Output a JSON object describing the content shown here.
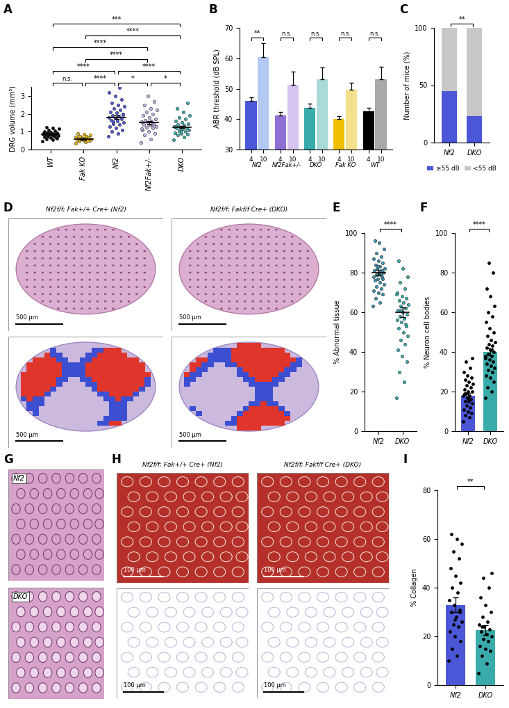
{
  "chart_data": [
    {
      "panel": "A",
      "type": "scatter",
      "categories": [
        "WT",
        "Fak KO",
        "Nf2",
        "Nf2Fak+/-",
        "DKO"
      ],
      "colors": [
        "#000000",
        "#e8b800",
        "#4b57d6",
        "#c4aee3",
        "#3aabab"
      ],
      "values": [
        [
          0.45,
          0.55,
          0.6,
          0.62,
          0.68,
          0.7,
          0.72,
          0.75,
          0.78,
          0.8,
          0.82,
          0.84,
          0.85,
          0.87,
          0.9,
          0.92,
          0.95,
          0.98,
          1.0,
          1.05,
          1.1,
          1.15,
          1.2,
          1.25,
          0.65,
          0.88,
          0.93
        ],
        [
          0.35,
          0.42,
          0.48,
          0.5,
          0.53,
          0.55,
          0.57,
          0.58,
          0.6,
          0.62,
          0.63,
          0.65,
          0.67,
          0.7,
          0.72,
          0.75,
          0.8,
          0.85,
          0.9,
          0.52,
          0.6
        ],
        [
          0.75,
          0.9,
          1.0,
          1.1,
          1.2,
          1.3,
          1.4,
          1.45,
          1.5,
          1.6,
          1.65,
          1.7,
          1.75,
          1.8,
          1.85,
          1.9,
          2.0,
          2.05,
          2.1,
          2.2,
          2.3,
          2.4,
          2.5,
          2.6,
          2.8,
          3.0,
          3.2,
          3.45,
          1.55,
          1.95
        ],
        [
          0.38,
          0.6,
          0.8,
          0.9,
          1.0,
          1.1,
          1.2,
          1.25,
          1.3,
          1.35,
          1.4,
          1.45,
          1.5,
          1.55,
          1.6,
          1.65,
          1.7,
          1.8,
          1.9,
          2.0,
          2.1,
          2.2,
          2.3,
          2.5,
          2.7,
          3.0,
          1.15,
          1.4
        ],
        [
          0.55,
          0.7,
          0.8,
          0.85,
          0.9,
          0.95,
          1.0,
          1.05,
          1.1,
          1.15,
          1.2,
          1.22,
          1.25,
          1.3,
          1.35,
          1.4,
          1.45,
          1.5,
          1.6,
          1.7,
          1.8,
          1.9,
          2.1,
          2.3,
          2.6,
          1.0,
          1.28
        ]
      ],
      "means": [
        0.85,
        0.6,
        1.8,
        1.5,
        1.25
      ],
      "errors": [
        0.05,
        0.04,
        0.1,
        0.09,
        0.06
      ],
      "ylabel": "DRG volume (mm³)",
      "ylim": [
        0,
        3.5
      ],
      "yticks": [
        0,
        1,
        2,
        3
      ],
      "comparisons": [
        {
          "groups": [
            "WT",
            "Fak KO"
          ],
          "label": "n.s."
        },
        {
          "groups": [
            "Fak KO",
            "Nf2"
          ],
          "label": "****"
        },
        {
          "groups": [
            "Nf2",
            "Nf2Fak+/-"
          ],
          "label": "*"
        },
        {
          "groups": [
            "Nf2Fak+/-",
            "DKO"
          ],
          "label": "*"
        },
        {
          "groups": [
            "WT",
            "Nf2"
          ],
          "label": "****"
        },
        {
          "groups": [
            "Nf2",
            "DKO"
          ],
          "label": "****"
        },
        {
          "groups": [
            "Fak KO",
            "Nf2Fak+/-"
          ],
          "label": "****"
        },
        {
          "groups": [
            "WT",
            "Nf2Fak+/-"
          ],
          "label": "****"
        },
        {
          "groups": [
            "Fak KO",
            "DKO"
          ],
          "label": "****"
        },
        {
          "groups": [
            "WT",
            "DKO"
          ],
          "label": "***"
        }
      ]
    },
    {
      "panel": "B",
      "type": "bar",
      "groups": [
        "Nf2",
        "Nf2Fak+/-",
        "DKO",
        "Fak KO",
        "WT"
      ],
      "series": [
        {
          "name": "4",
          "values": [
            46,
            41.3,
            43.8,
            40,
            42.6
          ],
          "errors": [
            1.2,
            1.0,
            1.2,
            1.0,
            1.2
          ],
          "colors": [
            "#4b57d6",
            "#8f6fd6",
            "#3aabab",
            "#f0c000",
            "#000000"
          ]
        },
        {
          "name": "10",
          "values": [
            60.5,
            51.3,
            53.2,
            49.7,
            53.2
          ],
          "errors": [
            4.5,
            4.3,
            3.7,
            2.2,
            4.0
          ],
          "colors": [
            "#b4c8f4",
            "#d5c4ee",
            "#a9d9d9",
            "#f5e08c",
            "#a8a8a8"
          ]
        }
      ],
      "ylabel": "ABR threshold (dB SPL)",
      "ylim": [
        30,
        70
      ],
      "yticks": [
        30,
        40,
        50,
        60,
        70
      ],
      "comparisons": [
        {
          "groups": [
            "Nf2"
          ],
          "label": "**"
        },
        {
          "groups": [
            "Nf2Fak+/-"
          ],
          "label": "n.s."
        },
        {
          "groups": [
            "DKO"
          ],
          "label": "n.s."
        },
        {
          "groups": [
            "Fak KO"
          ],
          "label": "n.s."
        },
        {
          "groups": [
            "WT"
          ],
          "label": "n.s."
        }
      ]
    },
    {
      "panel": "C",
      "type": "bar",
      "stacked": true,
      "legend": "bottom",
      "categories": [
        "Nf2",
        "DKO"
      ],
      "series": [
        {
          "name": "≥55 dB",
          "color": "#4b57d6",
          "values": [
            45,
            23
          ]
        },
        {
          "name": "<55 dB",
          "color": "#c7c7c7",
          "values": [
            55,
            77
          ]
        }
      ],
      "ylabel": "Number of mice (%)",
      "ylim": [
        0,
        100
      ],
      "yticks": [
        0,
        50,
        100
      ],
      "comparisons": [
        {
          "groups": [
            "Nf2",
            "DKO"
          ],
          "label": "**"
        }
      ]
    },
    {
      "panel": "E",
      "type": "scatter",
      "categories": [
        "Nf2",
        "DKO"
      ],
      "colors": [
        "#3b8fb0",
        "#3aabab"
      ],
      "values": [
        [
          63,
          65,
          67,
          69,
          70,
          71,
          72,
          73,
          74,
          75,
          76,
          77,
          77,
          78,
          79,
          79,
          80,
          80,
          81,
          81,
          82,
          82,
          83,
          84,
          85,
          86,
          87,
          88,
          90,
          92,
          95,
          96,
          78,
          83
        ],
        [
          17,
          25,
          30,
          35,
          38,
          41,
          44,
          46,
          48,
          50,
          52,
          53,
          55,
          56,
          57,
          58,
          59,
          60,
          61,
          62,
          63,
          64,
          65,
          66,
          67,
          68,
          70,
          72,
          75,
          78,
          82,
          86,
          54,
          61,
          69
        ]
      ],
      "means": [
        80,
        60
      ],
      "errors": [
        1.5,
        2.3
      ],
      "ylabel": "% Abnormal tissue",
      "ylim": [
        0,
        100
      ],
      "yticks": [
        0,
        20,
        40,
        60,
        80,
        100
      ],
      "comparisons": [
        {
          "groups": [
            "Nf2",
            "DKO"
          ],
          "label": "****"
        }
      ]
    },
    {
      "panel": "F",
      "type": "bar",
      "categories": [
        "Nf2",
        "DKO"
      ],
      "colors": [
        "#4b57d6",
        "#3aabab"
      ],
      "values": [
        18,
        40
      ],
      "errors": [
        1.2,
        1.8
      ],
      "points": [
        [
          5,
          7,
          8,
          9,
          10,
          11,
          12,
          13,
          14,
          15,
          15,
          16,
          17,
          18,
          18,
          19,
          20,
          20,
          21,
          22,
          23,
          24,
          25,
          26,
          27,
          28,
          30,
          32,
          35,
          37,
          16,
          19
        ],
        [
          17,
          20,
          22,
          25,
          27,
          28,
          30,
          31,
          32,
          33,
          34,
          35,
          36,
          37,
          38,
          39,
          40,
          41,
          42,
          43,
          44,
          45,
          46,
          48,
          50,
          52,
          55,
          58,
          60,
          63,
          68,
          72,
          80,
          85,
          38,
          41
        ]
      ],
      "ylabel": "% Neuron cell bodies",
      "ylim": [
        0,
        100
      ],
      "yticks": [
        0,
        20,
        40,
        60,
        80,
        100
      ],
      "comparisons": [
        {
          "groups": [
            "Nf2",
            "DKO"
          ],
          "label": "****"
        }
      ]
    },
    {
      "panel": "I",
      "type": "bar",
      "categories": [
        "Nf2",
        "DKO"
      ],
      "colors": [
        "#4b57d6",
        "#3aabab"
      ],
      "values": [
        33,
        22.5
      ],
      "errors": [
        3,
        2
      ],
      "points": [
        [
          10,
          12,
          15,
          18,
          20,
          22,
          24,
          25,
          26,
          28,
          30,
          31,
          33,
          35,
          38,
          40,
          42,
          45,
          48,
          52,
          55,
          58,
          60,
          62,
          30,
          27
        ],
        [
          5,
          9,
          12,
          14,
          15,
          16,
          18,
          19,
          20,
          21,
          22,
          23,
          24,
          25,
          26,
          28,
          30,
          33,
          36,
          40,
          44,
          46,
          21,
          24
        ]
      ],
      "ylabel": "% Collagen",
      "ylim": [
        0,
        80
      ],
      "yticks": [
        0,
        20,
        40,
        60,
        80
      ],
      "comparisons": [
        {
          "groups": [
            "Nf2",
            "DKO"
          ],
          "label": "**"
        }
      ]
    }
  ],
  "images": [
    {
      "panel": "D",
      "titles": [
        "Nf2f/f; Fak+/+ Cre+ (Nf2)",
        "Nf2f/f; Fakf/f Cre+ (DKO)"
      ],
      "scale_bar": "500 µm"
    },
    {
      "panel": "G",
      "labels": [
        "Nf2",
        "DKO"
      ]
    },
    {
      "panel": "H",
      "titles": [
        "Nf2f/f; Fak+/+ Cre+ (Nf2)",
        "Nf2f/f; Fakf/f Cre+ (DKO)"
      ],
      "scale_bar": "100 µm"
    }
  ]
}
